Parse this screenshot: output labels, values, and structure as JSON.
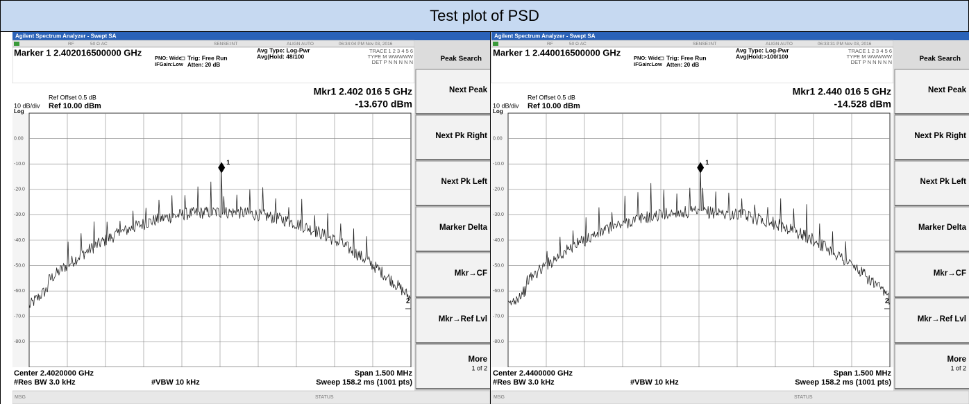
{
  "title": "Test plot of PSD",
  "panels": [
    {
      "app_title": "Agilent Spectrum Analyzer - Swept SA",
      "status": [
        "RF",
        "50 Ω  AC",
        "SENSE:INT",
        "ALIGN AUTO",
        "06:34:04 PM Nov 03, 2016"
      ],
      "marker": "Marker 1 2.402016500000 GHz",
      "pno": "PNO: Wide",
      "ifgain": "IFGain:Low",
      "trig": "Trig: Free Run",
      "atten": "Atten: 20 dB",
      "avg_type": "Avg Type: Log-Pwr",
      "avg_hold": "Avg|Hold: 48/100",
      "trace": "TRACE 1 2 3 4 5 6",
      "trace_type": "TYPE M WWWWW",
      "det": "DET P N N N N N",
      "softkey_menu": "Peak Search",
      "softkeys": [
        "Next Peak",
        "Next Pk Right",
        "Next Pk Left",
        "Marker Delta",
        "Mkr→CF",
        "Mkr→Ref Lvl",
        "More"
      ],
      "page": "1 of 2",
      "ref_offset": "Ref Offset 0.5 dB",
      "scale": "10 dB/div",
      "ref_level": "Ref 10.00 dBm",
      "log": "Log",
      "mkr_freq": "Mkr1 2.402 016 5 GHz",
      "mkr_amp": "-13.670 dBm",
      "y_labels": [
        "0.00",
        "-10.0",
        "-20.0",
        "-30.0",
        "-40.0",
        "-50.0",
        "-60.0",
        "-70.0",
        "-80.0"
      ],
      "marker_labels": [
        "1",
        "2"
      ],
      "center": "Center 2.4020000 GHz",
      "span": "Span 1.500 MHz",
      "res_bw": "#Res BW 3.0 kHz",
      "vbw": "#VBW 10 kHz",
      "sweep": "Sweep  158.2 ms (1001 pts)",
      "msg": "MSG",
      "status_label": "STATUS"
    },
    {
      "app_title": "Agilent Spectrum Analyzer - Swept SA",
      "status": [
        "RF",
        "50 Ω  AC",
        "SENSE:INT",
        "ALIGN AUTO",
        "06:33:31 PM Nov 03, 2016"
      ],
      "marker": "Marker 1 2.440016500000 GHz",
      "pno": "PNO: Wide",
      "ifgain": "IFGain:Low",
      "trig": "Trig: Free Run",
      "atten": "Atten: 20 dB",
      "avg_type": "Avg Type: Log-Pwr",
      "avg_hold": "Avg|Hold:>100/100",
      "trace": "TRACE 1 2 3 4 5 6",
      "trace_type": "TYPE M WWWWW",
      "det": "DET P N N N N N",
      "softkey_menu": "Peak Search",
      "softkeys": [
        "Next Peak",
        "Next Pk Right",
        "Next Pk Left",
        "Marker Delta",
        "Mkr→CF",
        "Mkr→Ref Lvl",
        "More"
      ],
      "page": "1 of 2",
      "ref_offset": "Ref Offset 0.5 dB",
      "scale": "10 dB/div",
      "ref_level": "Ref 10.00 dBm",
      "log": "Log",
      "mkr_freq": "Mkr1 2.440 016 5 GHz",
      "mkr_amp": "-14.528 dBm",
      "y_labels": [
        "0.00",
        "-10.0",
        "-20.0",
        "-30.0",
        "-40.0",
        "-50.0",
        "-60.0",
        "-70.0",
        "-80.0"
      ],
      "marker_labels": [
        "1",
        "2"
      ],
      "center": "Center 2.4400000 GHz",
      "span": "Span 1.500 MHz",
      "res_bw": "#Res BW 3.0 kHz",
      "vbw": "#VBW 10 kHz",
      "sweep": "Sweep  158.2 ms (1001 pts)",
      "msg": "MSG",
      "status_label": "STATUS"
    }
  ]
}
